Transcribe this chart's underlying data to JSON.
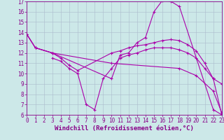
{
  "xlabel": "Windchill (Refroidissement éolien,°C)",
  "background_color": "#cce8e8",
  "line_color": "#aa00aa",
  "grid_color": "#aabbcc",
  "xlim": [
    0,
    23
  ],
  "ylim": [
    6,
    17
  ],
  "xticks": [
    0,
    1,
    2,
    3,
    4,
    5,
    6,
    7,
    8,
    9,
    10,
    11,
    12,
    13,
    14,
    15,
    16,
    17,
    18,
    19,
    20,
    21,
    22,
    23
  ],
  "yticks": [
    6,
    7,
    8,
    9,
    10,
    11,
    12,
    13,
    14,
    15,
    16,
    17
  ],
  "lines": [
    {
      "x": [
        0,
        1,
        3,
        10,
        11,
        12,
        13,
        14,
        15,
        16,
        17,
        18,
        22,
        23
      ],
      "y": [
        13.8,
        12.5,
        12.0,
        9.5,
        11.8,
        12.0,
        13.0,
        13.5,
        16.0,
        17.1,
        17.0,
        16.5,
        6.5,
        6.0
      ]
    },
    {
      "x": [
        0,
        1,
        3,
        10,
        18,
        20,
        22,
        23
      ],
      "y": [
        13.8,
        12.5,
        12.0,
        11.0,
        10.5,
        9.8,
        8.3,
        6.2
      ]
    },
    {
      "x": [
        0,
        1,
        3,
        4,
        5,
        6,
        10,
        11,
        12,
        13,
        14,
        15,
        16,
        17,
        18,
        19,
        20,
        21,
        22,
        23
      ],
      "y": [
        13.8,
        12.5,
        12.0,
        11.5,
        10.8,
        10.3,
        12.0,
        12.2,
        12.5,
        12.7,
        12.8,
        13.0,
        13.2,
        13.3,
        13.2,
        12.8,
        12.2,
        11.0,
        9.5,
        9.0
      ]
    },
    {
      "x": [
        3,
        4,
        5,
        6,
        7,
        8,
        9,
        10,
        11,
        12,
        13,
        14,
        15,
        16,
        17,
        18,
        19,
        20,
        21,
        22,
        23
      ],
      "y": [
        11.5,
        11.2,
        10.5,
        10.0,
        7.0,
        6.5,
        9.5,
        10.5,
        11.5,
        11.8,
        12.0,
        12.3,
        12.5,
        12.5,
        12.5,
        12.3,
        12.0,
        11.5,
        10.5,
        9.5,
        6.0
      ]
    }
  ],
  "tick_fontsize": 5.5,
  "label_fontsize": 6.5,
  "axis_color": "#880088",
  "tick_color": "#880088",
  "lw": 0.8,
  "markersize": 2.5,
  "markeredgewidth": 0.8
}
